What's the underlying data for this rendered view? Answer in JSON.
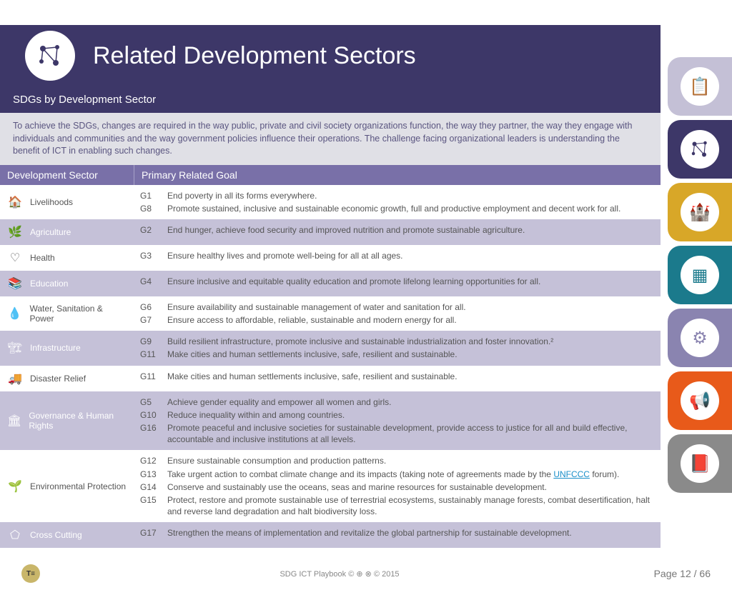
{
  "header": {
    "title": "Related Development Sectors"
  },
  "subheader": "SDGs by Development Sector",
  "intro": "To achieve the SDGs, changes are required in the way public, private and civil society organizations function, the way they partner, the way they engage with individuals and communities and the way government policies influence their operations. The challenge facing organizational leaders is understanding the benefit of ICT in enabling such changes.",
  "tableHeader": {
    "sector": "Development Sector",
    "goal": "Primary Related Goal"
  },
  "rows": [
    {
      "odd": false,
      "sector": "Livelihoods",
      "icon": "🏠",
      "goals": [
        {
          "code": "G1",
          "text": "End poverty in all its forms everywhere."
        },
        {
          "code": "G8",
          "text": "Promote sustained, inclusive and sustainable economic growth, full and productive employment and decent work for all."
        }
      ]
    },
    {
      "odd": true,
      "sector": "Agriculture",
      "icon": "🌿",
      "goals": [
        {
          "code": "G2",
          "text": "End hunger, achieve food security and improved nutrition and promote sustainable agriculture."
        }
      ]
    },
    {
      "odd": false,
      "sector": "Health",
      "icon": "♡",
      "goals": [
        {
          "code": "G3",
          "text": "Ensure healthy lives and promote well-being for all at all ages."
        }
      ]
    },
    {
      "odd": true,
      "sector": "Education",
      "icon": "📚",
      "goals": [
        {
          "code": "G4",
          "text": "Ensure inclusive and equitable quality education and promote lifelong learning opportunities for all."
        }
      ]
    },
    {
      "odd": false,
      "sector": "Water, Sanitation & Power",
      "icon": "💧",
      "goals": [
        {
          "code": "G6",
          "text": "Ensure availability and sustainable management of water and sanitation for all."
        },
        {
          "code": "G7",
          "text": "Ensure access to affordable, reliable, sustainable and modern energy for all."
        }
      ]
    },
    {
      "odd": true,
      "sector": "Infrastructure",
      "icon": "🏗",
      "goals": [
        {
          "code": "G9",
          "text": "Build resilient infrastructure, promote inclusive and sustainable industrialization and foster innovation.²"
        },
        {
          "code": "G11",
          "text": "Make cities and human settlements inclusive, safe, resilient and sustainable."
        }
      ]
    },
    {
      "odd": false,
      "sector": "Disaster Relief",
      "icon": "🚚",
      "goals": [
        {
          "code": "G11",
          "text": "Make cities and human settlements inclusive, safe, resilient and sustainable."
        }
      ]
    },
    {
      "odd": true,
      "sector": "Governance & Human Rights",
      "icon": "🏛",
      "goals": [
        {
          "code": "G5",
          "text": "Achieve gender equality and empower all women and girls."
        },
        {
          "code": "G10",
          "text": "Reduce inequality within and among countries."
        },
        {
          "code": "G16",
          "text": "Promote peaceful and inclusive societies for sustainable development, provide access to justice for all and build effective, accountable and inclusive institutions at all levels."
        }
      ]
    },
    {
      "odd": false,
      "sector": "Environmental Protection",
      "icon": "🌱",
      "goals": [
        {
          "code": "G12",
          "text": "Ensure sustainable consumption and production patterns."
        },
        {
          "code": "G13",
          "text": "Take urgent action to combat climate change and its impacts (taking note of agreements made by the ",
          "link": "UNFCCC",
          "suffix": " forum)."
        },
        {
          "code": "G14",
          "text": "Conserve and sustainably use the oceans, seas and marine resources for sustainable development."
        },
        {
          "code": "G15",
          "text": "Protect, restore and promote sustainable use of terrestrial ecosystems, sustainably manage forests, combat desertification, halt and reverse land degradation and halt biodiversity loss."
        }
      ]
    },
    {
      "odd": true,
      "sector": "Cross Cutting",
      "icon": "⬠",
      "goals": [
        {
          "code": "G17",
          "text": "Strengthen the means of implementation and revitalize the global partnership for sustainable development."
        }
      ]
    }
  ],
  "sidebar": [
    {
      "color": "#c4c0d6",
      "icon": "📋",
      "iconColor": "#7970a8"
    },
    {
      "color": "#3d3768",
      "icon": "network",
      "iconColor": "#3d3768"
    },
    {
      "color": "#d8a728",
      "icon": "🏰",
      "iconColor": "#d8a728"
    },
    {
      "color": "#1b7a8c",
      "icon": "▦",
      "iconColor": "#1b7a8c"
    },
    {
      "color": "#8a84b0",
      "icon": "⚙",
      "iconColor": "#8a84b0"
    },
    {
      "color": "#e85a1a",
      "icon": "📢",
      "iconColor": "#e85a1a"
    },
    {
      "color": "#8a8a8a",
      "icon": "📕",
      "iconColor": "#8a8a8a"
    }
  ],
  "footer": {
    "center": "SDG ICT Playbook   ©  ⊕  ⊗  ©  2015",
    "page": "Page 12 / 66"
  }
}
